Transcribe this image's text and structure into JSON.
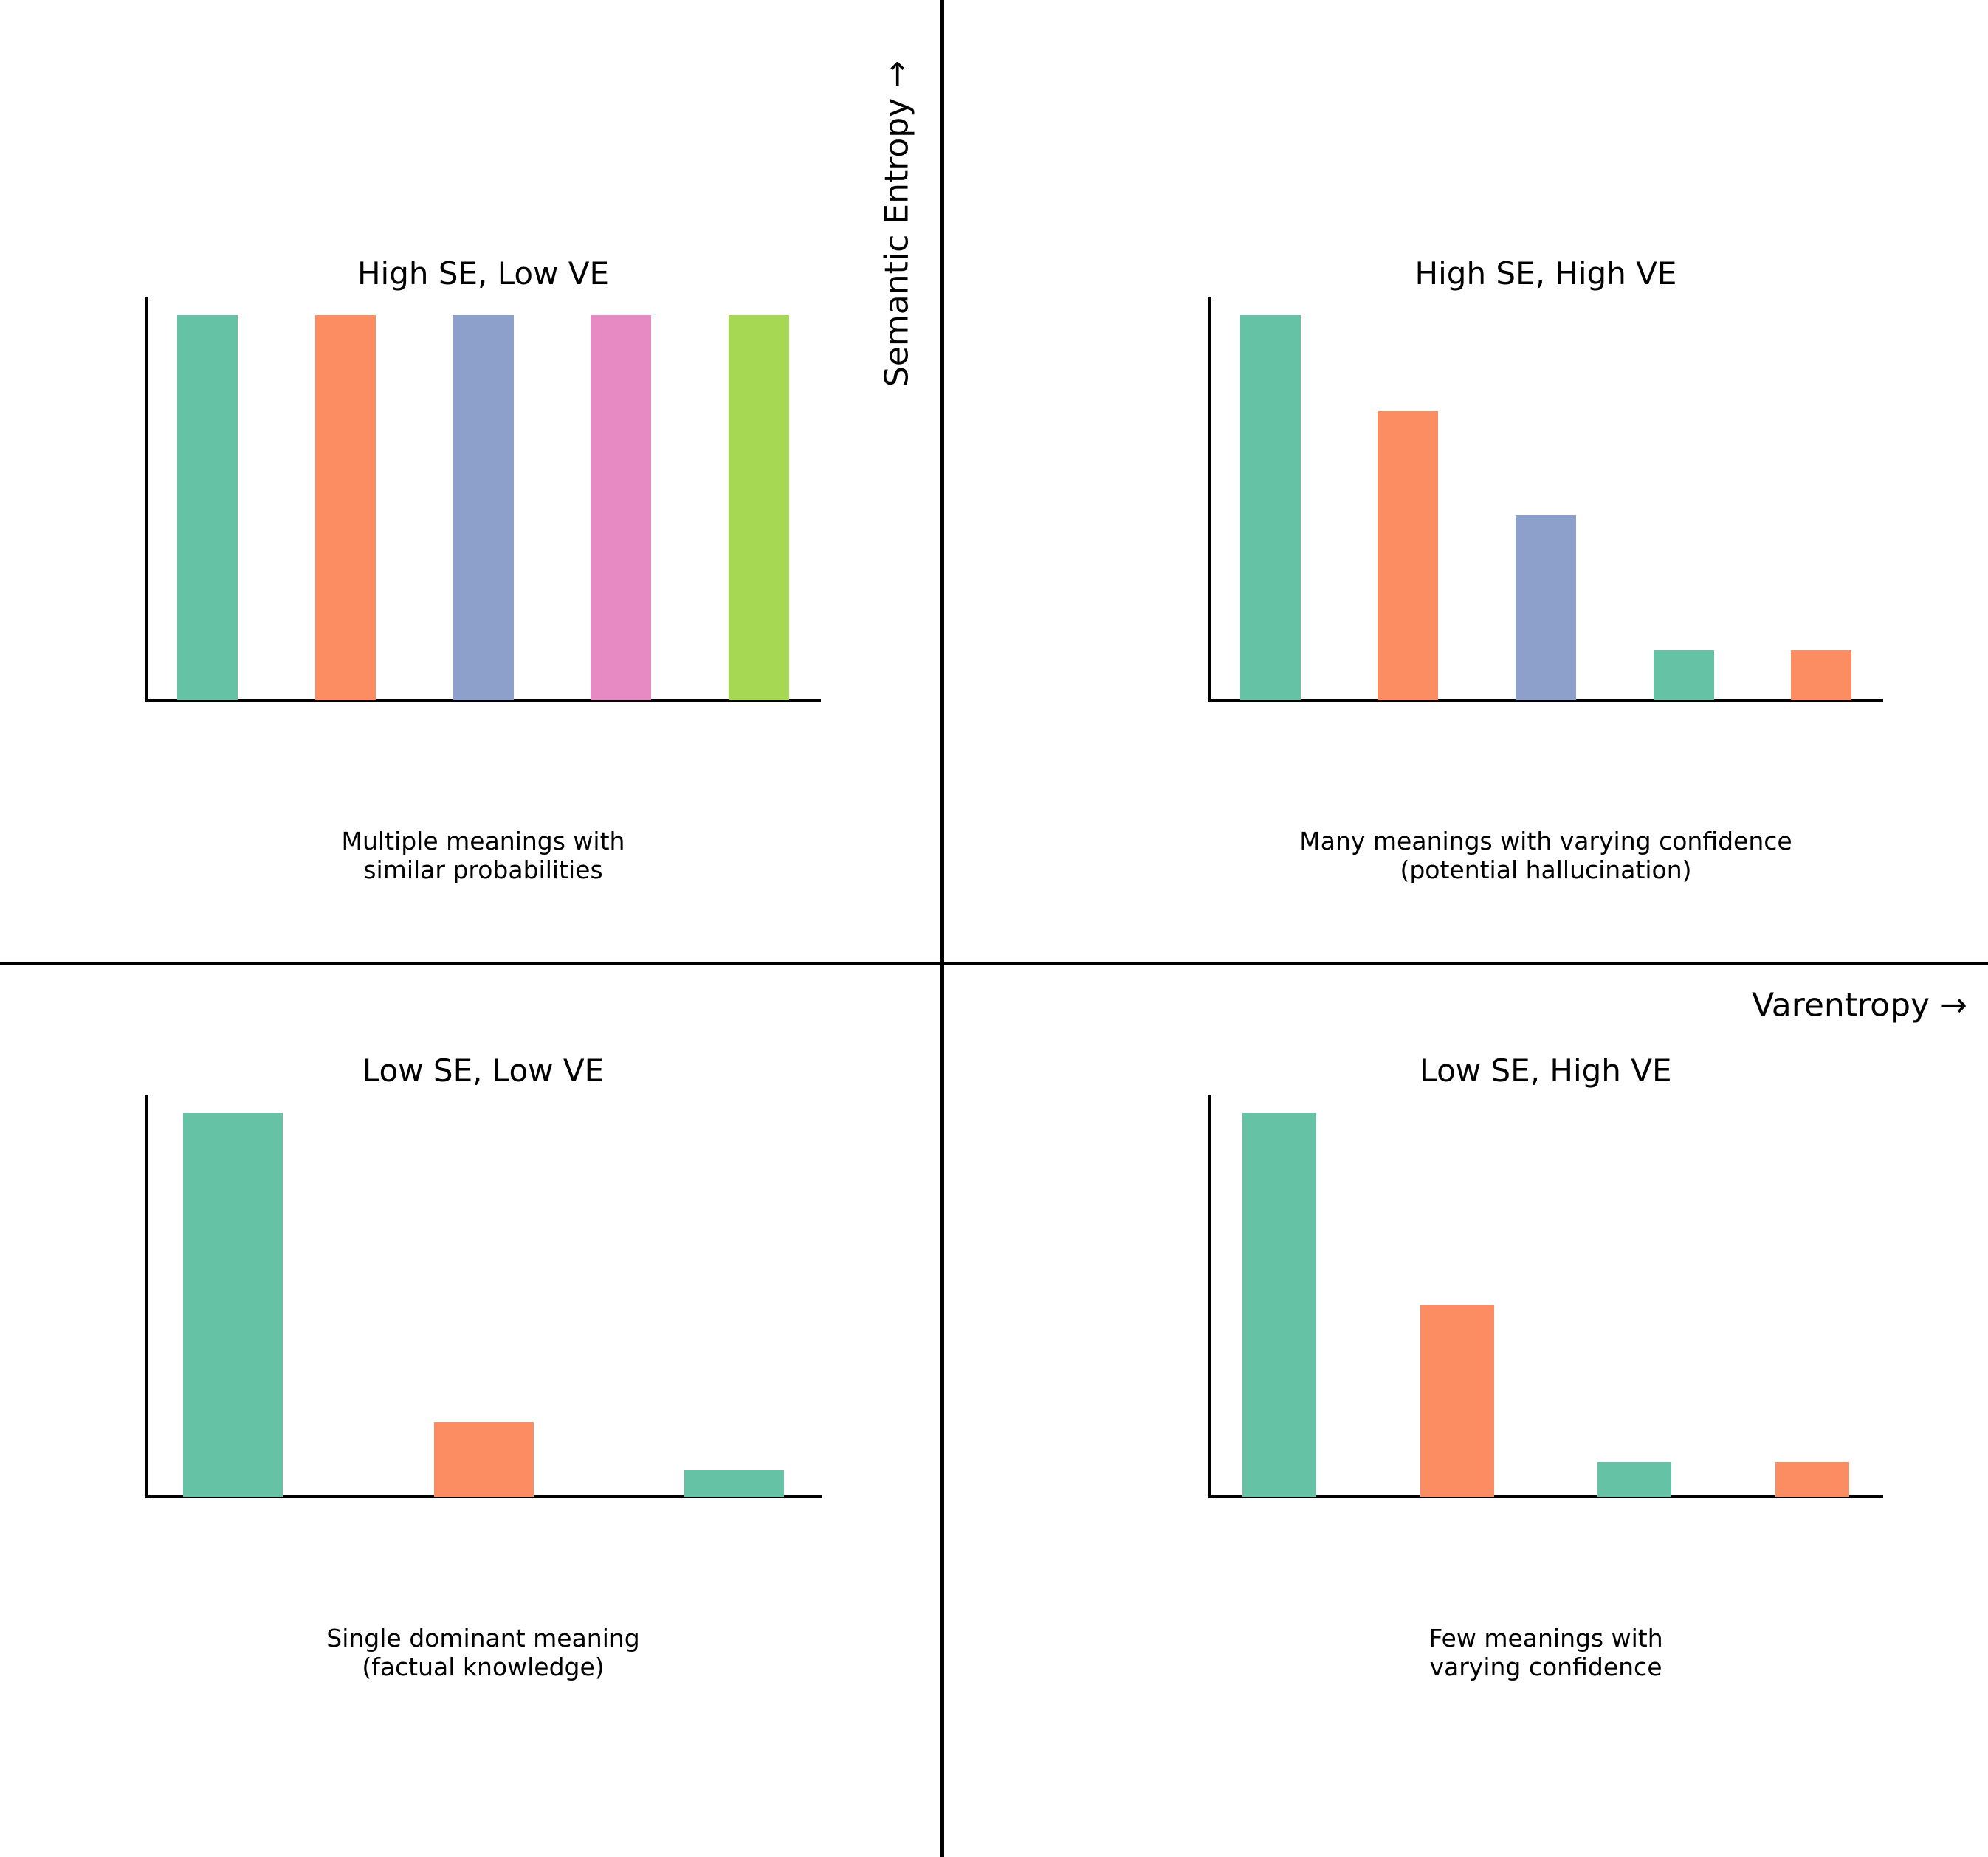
{
  "figure": {
    "background": "#ffffff",
    "line_color": "#000000",
    "x_axis_label": "Varentropy →",
    "y_axis_label": "Semantic Entropy →"
  },
  "palette": {
    "teal": "#66c2a5",
    "orange": "#fc8d62",
    "blue": "#8da0cb",
    "pink": "#e78ac3",
    "green": "#a6d854"
  },
  "chart_data": [
    {
      "type": "bar",
      "quadrant": "top-left",
      "title": "High SE, Low VE",
      "caption_line1": "Multiple meanings with",
      "caption_line2": "similar probabilities",
      "values": [
        1.0,
        1.0,
        1.0,
        1.0,
        1.0
      ],
      "values_unit": "relative height (fraction of tallest bar)",
      "bar_colors": [
        "teal",
        "orange",
        "blue",
        "pink",
        "green"
      ],
      "grid": false,
      "tick_labels": false,
      "ylim": [
        0,
        1.05
      ]
    },
    {
      "type": "bar",
      "quadrant": "top-right",
      "title": "High SE, High VE",
      "caption_line1": "Many meanings with varying confidence",
      "caption_line2": "(potential hallucination)",
      "values": [
        1.0,
        0.75,
        0.48,
        0.13,
        0.13
      ],
      "values_unit": "relative height (fraction of tallest bar)",
      "bar_colors": [
        "teal",
        "orange",
        "blue",
        "teal",
        "orange"
      ],
      "grid": false,
      "tick_labels": false,
      "ylim": [
        0,
        1.05
      ]
    },
    {
      "type": "bar",
      "quadrant": "bottom-left",
      "title": "Low SE, Low VE",
      "caption_line1": "Single dominant meaning",
      "caption_line2": "(factual knowledge)",
      "values": [
        1.0,
        0.195,
        0.07
      ],
      "values_unit": "relative height (fraction of tallest bar)",
      "bar_colors": [
        "teal",
        "orange",
        "teal"
      ],
      "grid": false,
      "tick_labels": false,
      "ylim": [
        0,
        1.05
      ]
    },
    {
      "type": "bar",
      "quadrant": "bottom-right",
      "title": "Low SE, High VE",
      "caption_line1": "Few meanings with",
      "caption_line2": "varying confidence",
      "values": [
        1.0,
        0.5,
        0.09,
        0.09
      ],
      "values_unit": "relative height (fraction of tallest bar)",
      "bar_colors": [
        "teal",
        "orange",
        "teal",
        "orange"
      ],
      "grid": false,
      "tick_labels": false,
      "ylim": [
        0,
        1.05
      ]
    }
  ]
}
